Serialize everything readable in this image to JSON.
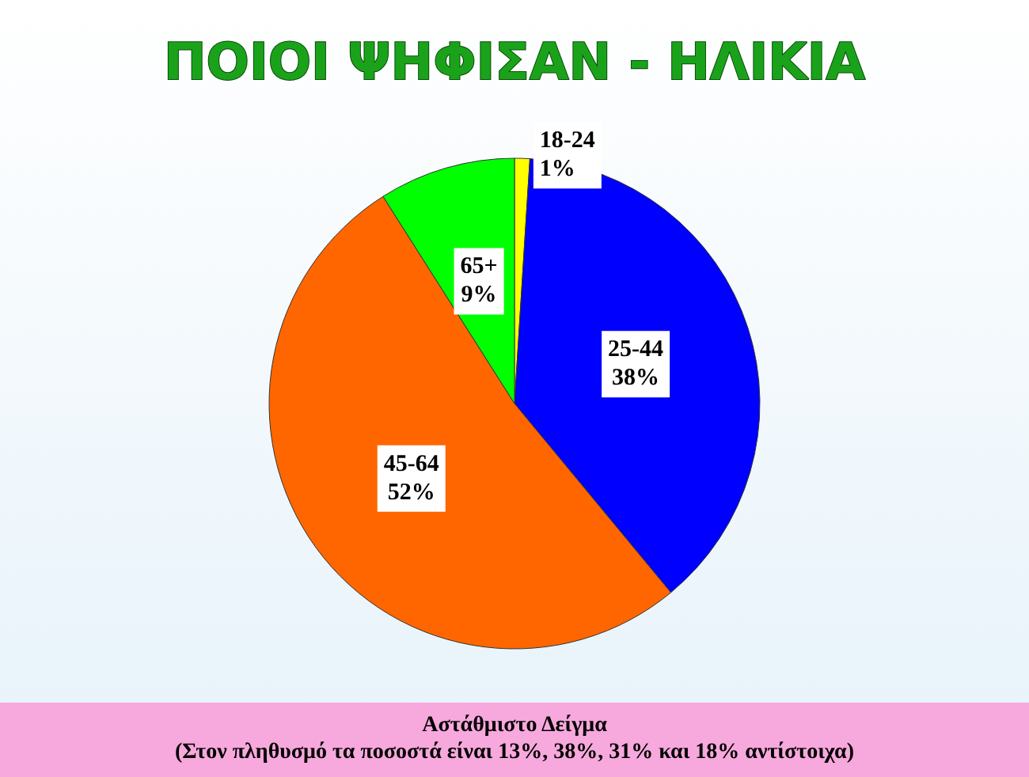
{
  "chart_data": {
    "type": "pie",
    "title": "ΠΟΙΟΙ ΨΗΦΙΣΑΝ - ΗΛΙΚΙΑ",
    "categories": [
      "18-24",
      "25-44",
      "45-64",
      "65+"
    ],
    "values": [
      1,
      38,
      52,
      9
    ],
    "value_labels": [
      "1%",
      "38%",
      "52%",
      "9%"
    ],
    "colors": [
      "#ffff00",
      "#0000ff",
      "#ff6600",
      "#00ff00"
    ],
    "legend": false,
    "annotations": [
      "Αστάθμιστο Δείγμα",
      "(Στον πληθυσμό τα ποσοστά είναι 13%, 38%, 31% και 18% αντίστοιχα)"
    ]
  }
}
